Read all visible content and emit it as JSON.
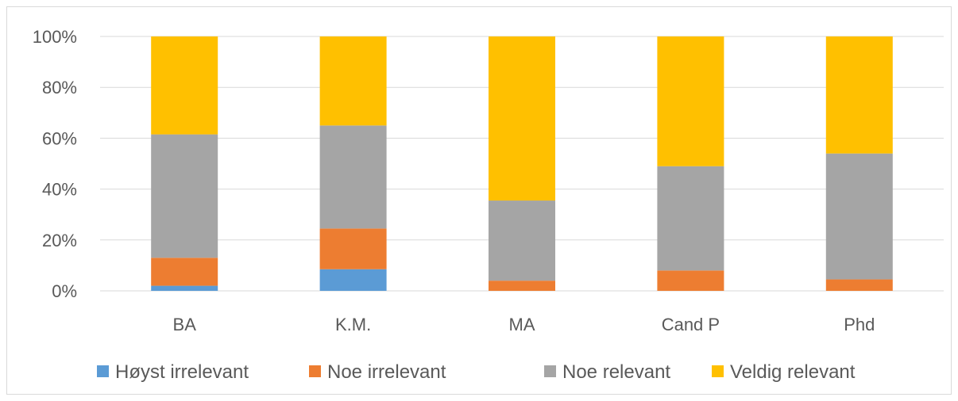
{
  "chart_data": {
    "type": "bar",
    "stacked": true,
    "percent": true,
    "categories": [
      "BA",
      "K.M.",
      "MA",
      "Cand P",
      "Phd"
    ],
    "series": [
      {
        "name": "Høyst irrelevant",
        "color": "#5B9BD5",
        "values": [
          2,
          8.5,
          0,
          0,
          0
        ]
      },
      {
        "name": "Noe irrelevant",
        "color": "#ED7D31",
        "values": [
          11,
          16,
          4,
          8,
          4.5
        ]
      },
      {
        "name": "Noe relevant",
        "color": "#A5A5A5",
        "values": [
          48.5,
          40.5,
          31.5,
          41,
          49.5
        ]
      },
      {
        "name": "Veldig relevant",
        "color": "#FFC000",
        "values": [
          38.5,
          35,
          64.5,
          51,
          46
        ]
      }
    ],
    "ylim": [
      0,
      100
    ],
    "yticks": [
      "0%",
      "20%",
      "40%",
      "60%",
      "80%",
      "100%"
    ],
    "grid": true,
    "legend": "bottom"
  }
}
